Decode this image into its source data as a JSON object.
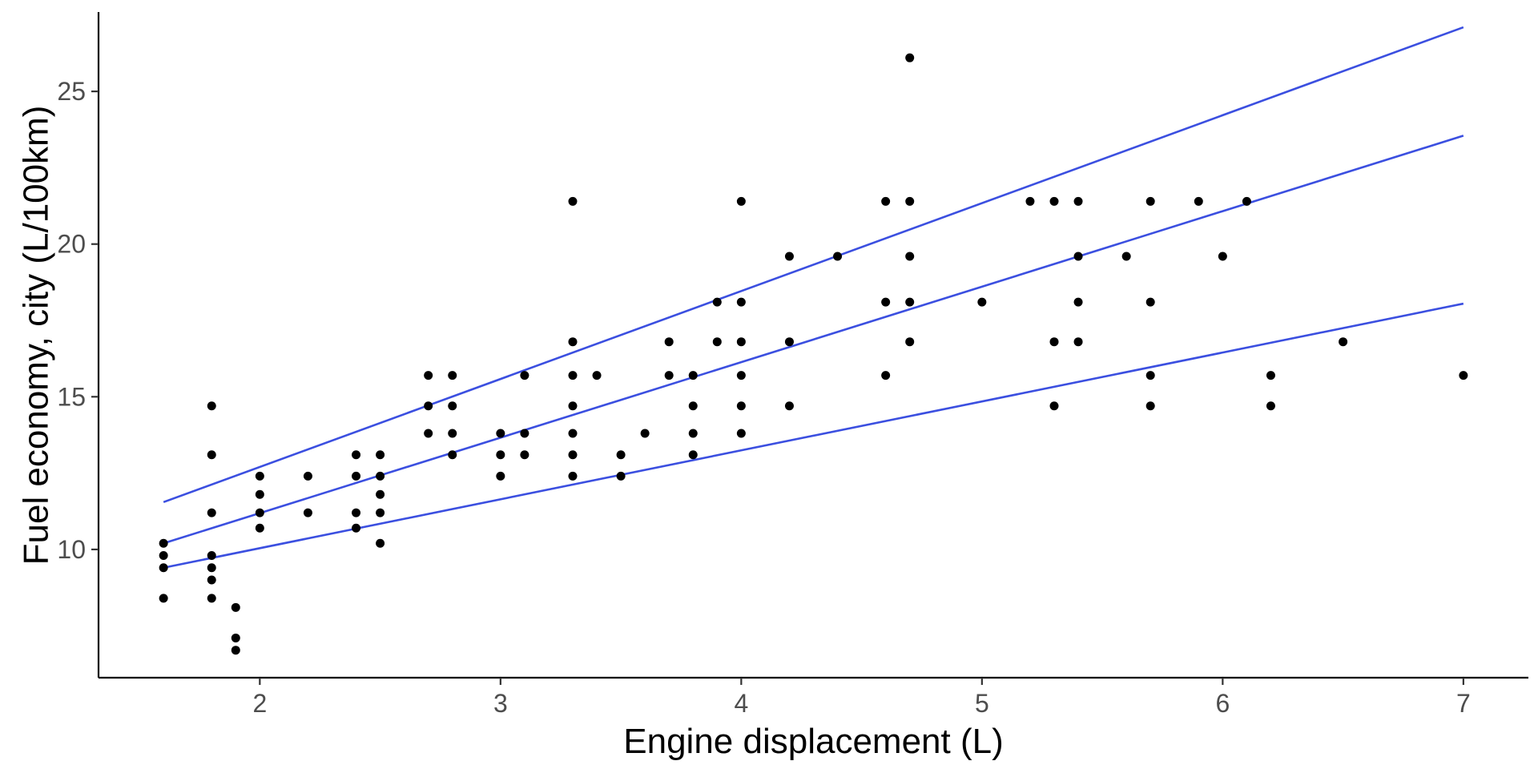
{
  "chart_data": {
    "type": "scatter",
    "title": "",
    "xlabel": "Engine displacement (L)",
    "ylabel": "Fuel economy, city (L/100km)",
    "xlim": [
      1.33,
      7.27
    ],
    "ylim": [
      5.8,
      27.6
    ],
    "x_ticks": [
      2,
      3,
      4,
      5,
      6,
      7
    ],
    "y_ticks": [
      10,
      15,
      20,
      25
    ],
    "grid": false,
    "legend": "none",
    "point_color": "#000000",
    "line_color": "#3b4fe0",
    "points": [
      [
        1.6,
        8.4
      ],
      [
        1.6,
        9.4
      ],
      [
        1.6,
        9.8
      ],
      [
        1.6,
        10.2
      ],
      [
        1.8,
        8.4
      ],
      [
        1.8,
        9.0
      ],
      [
        1.8,
        9.4
      ],
      [
        1.8,
        9.8
      ],
      [
        1.8,
        11.2
      ],
      [
        1.8,
        13.1
      ],
      [
        1.8,
        14.7
      ],
      [
        1.9,
        6.7
      ],
      [
        1.9,
        7.1
      ],
      [
        1.9,
        8.1
      ],
      [
        2.0,
        10.7
      ],
      [
        2.0,
        11.2
      ],
      [
        2.0,
        11.8
      ],
      [
        2.0,
        12.4
      ],
      [
        2.2,
        11.2
      ],
      [
        2.2,
        12.4
      ],
      [
        2.4,
        10.7
      ],
      [
        2.4,
        11.2
      ],
      [
        2.4,
        12.4
      ],
      [
        2.4,
        13.1
      ],
      [
        2.5,
        10.2
      ],
      [
        2.5,
        11.2
      ],
      [
        2.5,
        11.8
      ],
      [
        2.5,
        12.4
      ],
      [
        2.5,
        13.1
      ],
      [
        2.7,
        13.8
      ],
      [
        2.7,
        14.7
      ],
      [
        2.7,
        15.7
      ],
      [
        2.8,
        13.1
      ],
      [
        2.8,
        13.8
      ],
      [
        2.8,
        14.7
      ],
      [
        2.8,
        15.7
      ],
      [
        3.0,
        12.4
      ],
      [
        3.0,
        13.1
      ],
      [
        3.0,
        13.8
      ],
      [
        3.1,
        13.1
      ],
      [
        3.1,
        13.8
      ],
      [
        3.1,
        15.7
      ],
      [
        3.3,
        12.4
      ],
      [
        3.3,
        13.1
      ],
      [
        3.3,
        13.8
      ],
      [
        3.3,
        14.7
      ],
      [
        3.3,
        15.7
      ],
      [
        3.3,
        16.8
      ],
      [
        3.3,
        21.4
      ],
      [
        3.4,
        15.7
      ],
      [
        3.5,
        12.4
      ],
      [
        3.5,
        13.1
      ],
      [
        3.6,
        13.8
      ],
      [
        3.7,
        15.7
      ],
      [
        3.7,
        16.8
      ],
      [
        3.8,
        13.1
      ],
      [
        3.8,
        13.8
      ],
      [
        3.8,
        14.7
      ],
      [
        3.8,
        15.7
      ],
      [
        3.9,
        16.8
      ],
      [
        3.9,
        18.1
      ],
      [
        4.0,
        13.8
      ],
      [
        4.0,
        14.7
      ],
      [
        4.0,
        15.7
      ],
      [
        4.0,
        16.8
      ],
      [
        4.0,
        18.1
      ],
      [
        4.0,
        21.4
      ],
      [
        4.2,
        14.7
      ],
      [
        4.2,
        16.8
      ],
      [
        4.2,
        19.6
      ],
      [
        4.4,
        19.6
      ],
      [
        4.6,
        15.7
      ],
      [
        4.6,
        18.1
      ],
      [
        4.6,
        21.4
      ],
      [
        4.7,
        16.8
      ],
      [
        4.7,
        18.1
      ],
      [
        4.7,
        19.6
      ],
      [
        4.7,
        21.4
      ],
      [
        4.7,
        26.1
      ],
      [
        5.0,
        18.1
      ],
      [
        5.2,
        21.4
      ],
      [
        5.3,
        14.7
      ],
      [
        5.3,
        16.8
      ],
      [
        5.3,
        21.4
      ],
      [
        5.4,
        16.8
      ],
      [
        5.4,
        18.1
      ],
      [
        5.4,
        19.6
      ],
      [
        5.4,
        21.4
      ],
      [
        5.6,
        19.6
      ],
      [
        5.7,
        14.7
      ],
      [
        5.7,
        15.7
      ],
      [
        5.7,
        18.1
      ],
      [
        5.7,
        21.4
      ],
      [
        5.9,
        21.4
      ],
      [
        6.0,
        19.6
      ],
      [
        6.1,
        21.4
      ],
      [
        6.2,
        14.7
      ],
      [
        6.2,
        15.7
      ],
      [
        6.5,
        16.8
      ],
      [
        7.0,
        15.7
      ]
    ],
    "lines": [
      {
        "x": [
          1.6,
          7.0
        ],
        "y": [
          11.55,
          27.1
        ]
      },
      {
        "x": [
          1.6,
          7.0
        ],
        "y": [
          10.2,
          23.55
        ]
      },
      {
        "x": [
          1.6,
          7.0
        ],
        "y": [
          9.4,
          18.05
        ]
      }
    ]
  }
}
